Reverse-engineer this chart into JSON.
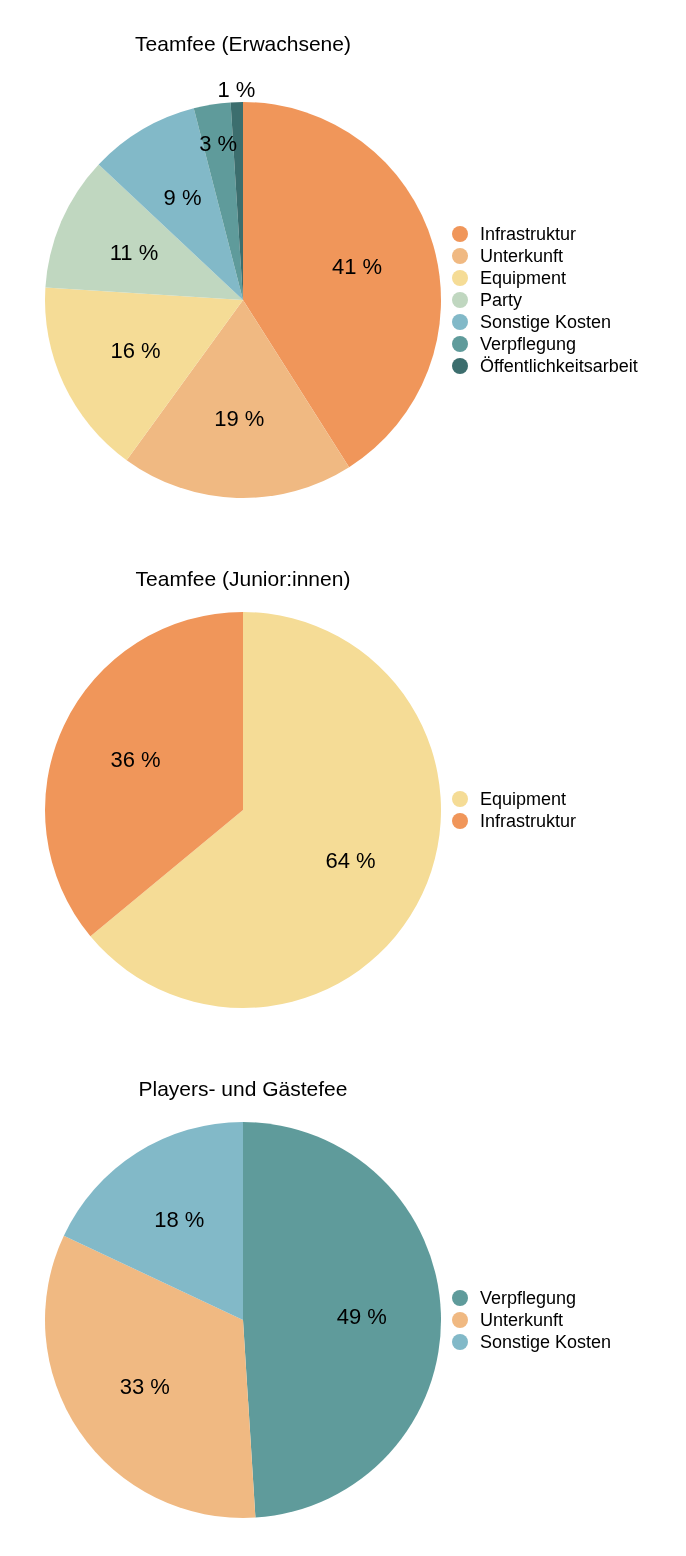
{
  "chart_data": [
    {
      "type": "pie",
      "title": "Teamfee (Erwachsene)",
      "categories": [
        "Infrastruktur",
        "Unterkunft",
        "Equipment",
        "Party",
        "Sonstige Kosten",
        "Verpflegung",
        "Öffentlichkeitsarbeit"
      ],
      "values": [
        41,
        19,
        16,
        11,
        9,
        3,
        1
      ],
      "colors": [
        "#f0965a",
        "#f0b982",
        "#f5dc96",
        "#c0d7c0",
        "#82b9c8",
        "#5f9b9b",
        "#3c6e6e"
      ],
      "value_labels": [
        "41 %",
        "19 %",
        "16 %",
        "11 %",
        "9 %",
        "3 %",
        "1 %"
      ],
      "legend": "right"
    },
    {
      "type": "pie",
      "title": "Teamfee (Junior:innen)",
      "categories": [
        "Equipment",
        "Infrastruktur"
      ],
      "values": [
        64,
        36
      ],
      "colors": [
        "#f5dc96",
        "#f0965a"
      ],
      "value_labels": [
        "64 %",
        "36 %"
      ],
      "legend": "right"
    },
    {
      "type": "pie",
      "title": "Players- und Gästefee",
      "categories": [
        "Verpflegung",
        "Unterkunft",
        "Sonstige Kosten"
      ],
      "values": [
        49,
        33,
        18
      ],
      "colors": [
        "#5f9b9b",
        "#f0b982",
        "#82b9c8"
      ],
      "value_labels": [
        "49 %",
        "33 %",
        "18 %"
      ],
      "legend": "right"
    }
  ]
}
